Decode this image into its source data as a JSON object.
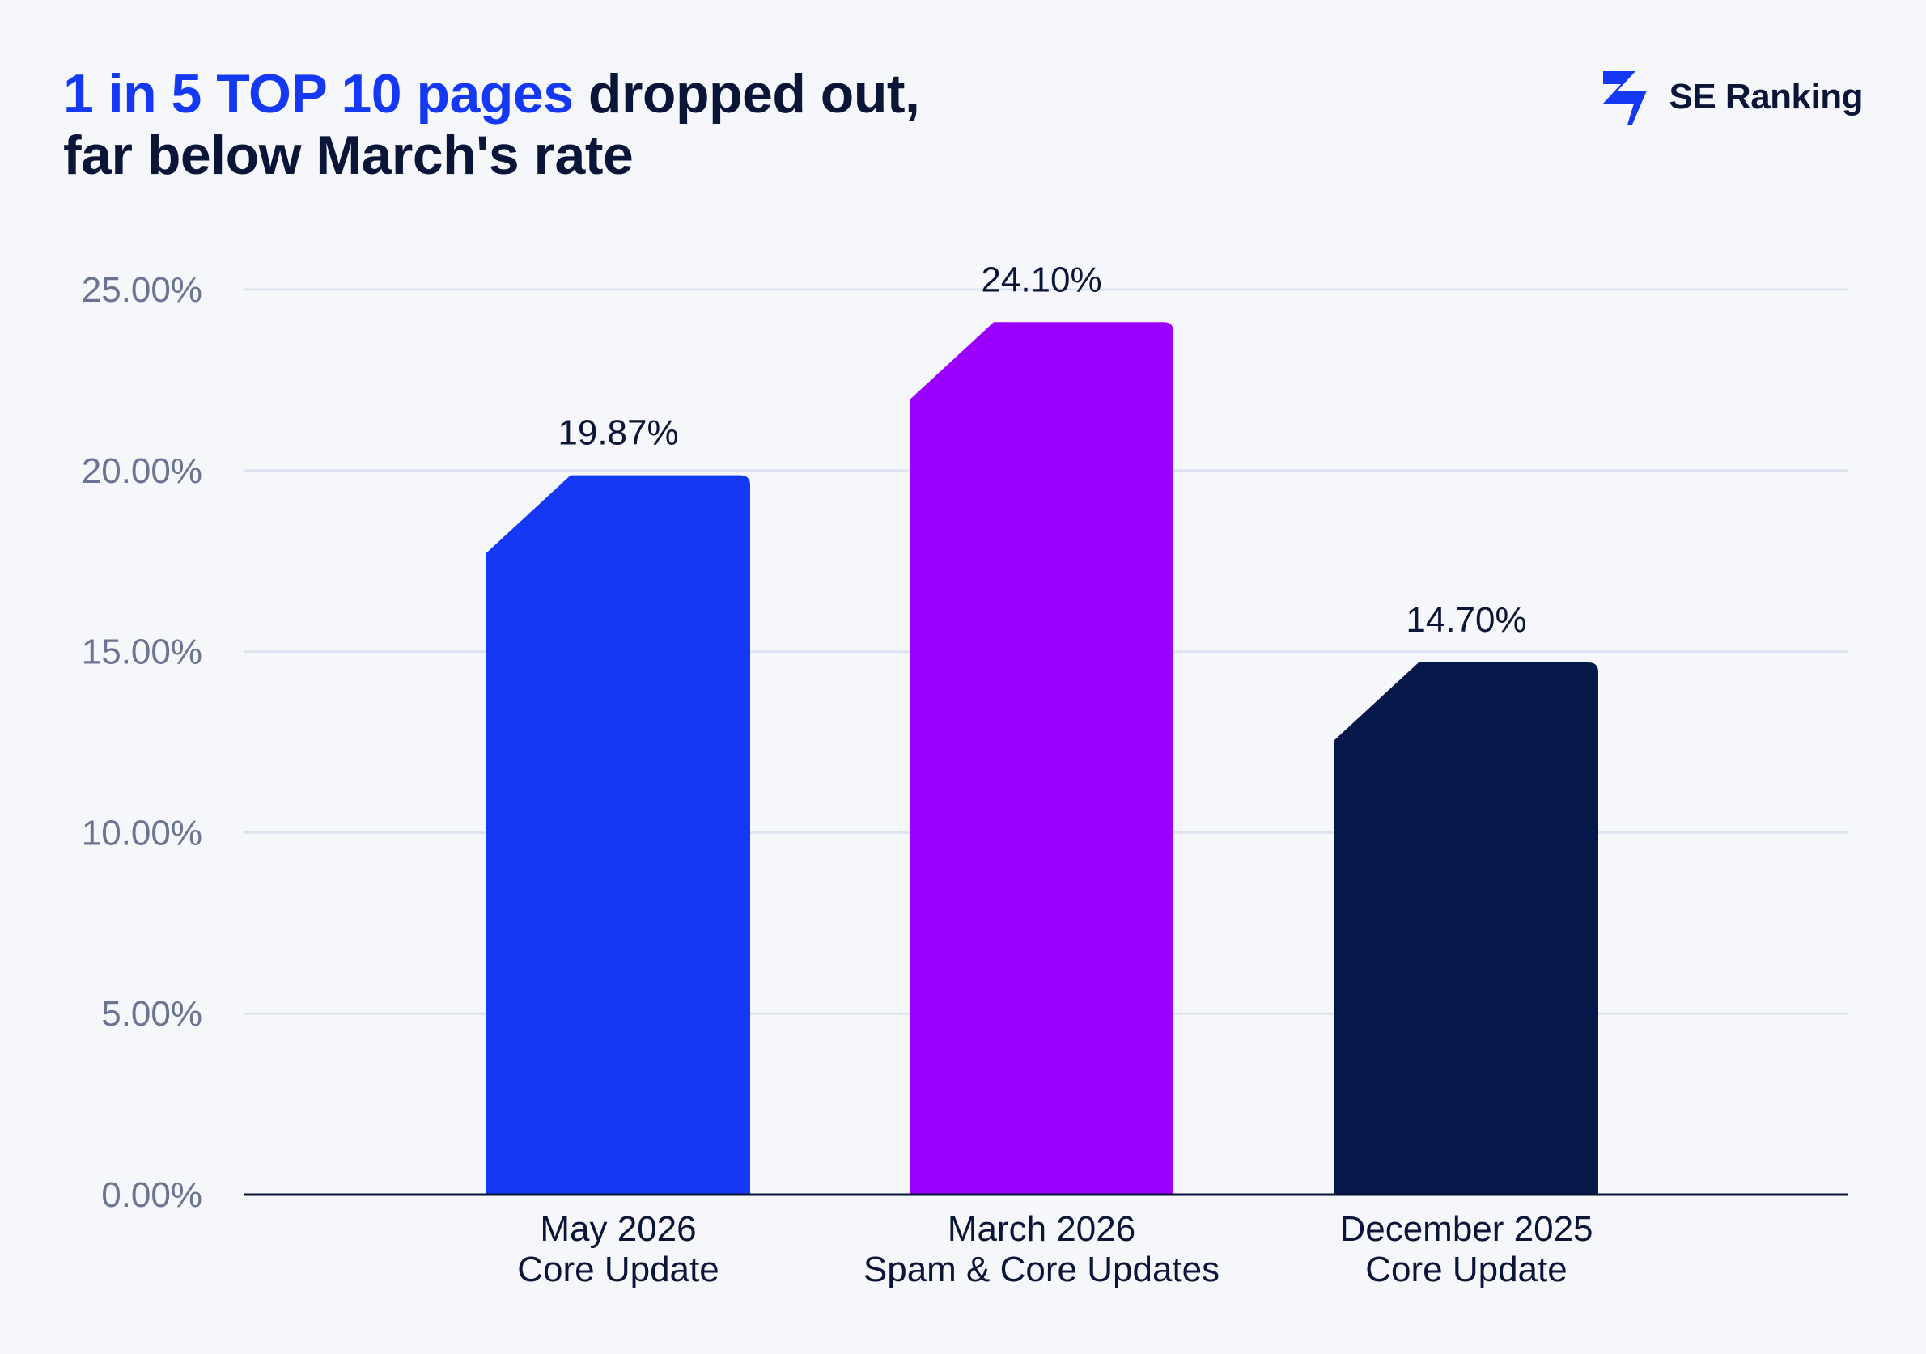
{
  "header": {
    "title_highlight": "1 in 5 TOP 10 pages",
    "title_rest_line1": " dropped out,",
    "title_line2": "far below March's rate"
  },
  "brand": {
    "name": "SE Ranking",
    "icon": "se-ranking-logo-icon",
    "color": "#1538f5"
  },
  "chart_data": {
    "type": "bar",
    "title": "1 in 5 TOP 10 pages dropped out, far below March's rate",
    "categories": [
      [
        "May 2026",
        "Core Update"
      ],
      [
        "March 2026",
        "Spam & Core Updates"
      ],
      [
        "December 2025",
        "Core Update"
      ]
    ],
    "values": [
      19.87,
      24.1,
      14.7
    ],
    "value_labels": [
      "19.87%",
      "24.10%",
      "14.70%"
    ],
    "colors": [
      "#1538f5",
      "#9b00ff",
      "#06184a"
    ],
    "ylim": [
      0,
      25
    ],
    "yticks": [
      0,
      5,
      10,
      15,
      20,
      25
    ],
    "ytick_labels": [
      "0.00%",
      "5.00%",
      "10.00%",
      "15.00%",
      "20.00%",
      "25.00%"
    ],
    "grid": true,
    "legend": "none",
    "xlabel": "",
    "ylabel": ""
  }
}
